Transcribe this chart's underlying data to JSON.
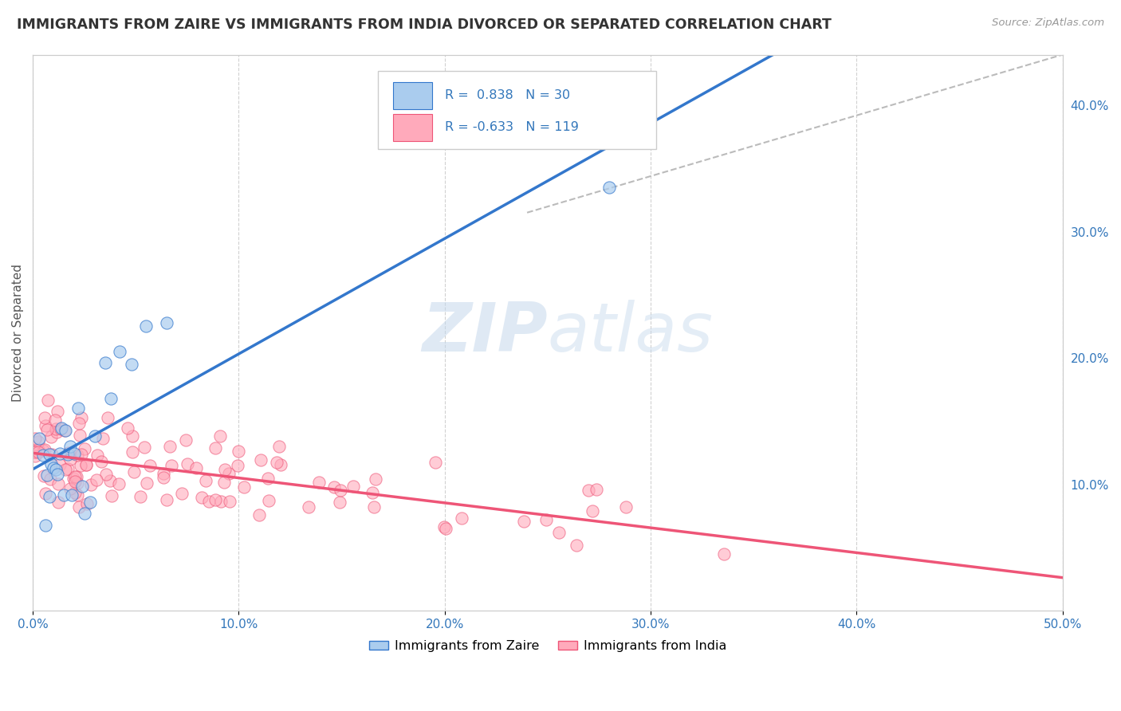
{
  "title": "IMMIGRANTS FROM ZAIRE VS IMMIGRANTS FROM INDIA DIVORCED OR SEPARATED CORRELATION CHART",
  "source": "Source: ZipAtlas.com",
  "ylabel": "Divorced or Separated",
  "xlim": [
    0.0,
    0.5
  ],
  "ylim": [
    0.0,
    0.44
  ],
  "background_color": "#ffffff",
  "grid_color": "#cccccc",
  "zaire_scatter_color": "#aaccee",
  "india_scatter_color": "#ffaabb",
  "zaire_line_color": "#3377cc",
  "india_line_color": "#ee5577",
  "diagonal_line_color": "#bbbbbb",
  "legend_zaire_color": "#aaccee",
  "legend_india_color": "#ffaabb",
  "legend_zaire_edge": "#3377cc",
  "legend_india_edge": "#ee5577",
  "legend_zaire_label": "Immigrants from Zaire",
  "legend_india_label": "Immigrants from India",
  "R_zaire": 0.838,
  "N_zaire": 30,
  "R_india": -0.633,
  "N_india": 119,
  "zaire_seed": 7,
  "india_seed": 13
}
